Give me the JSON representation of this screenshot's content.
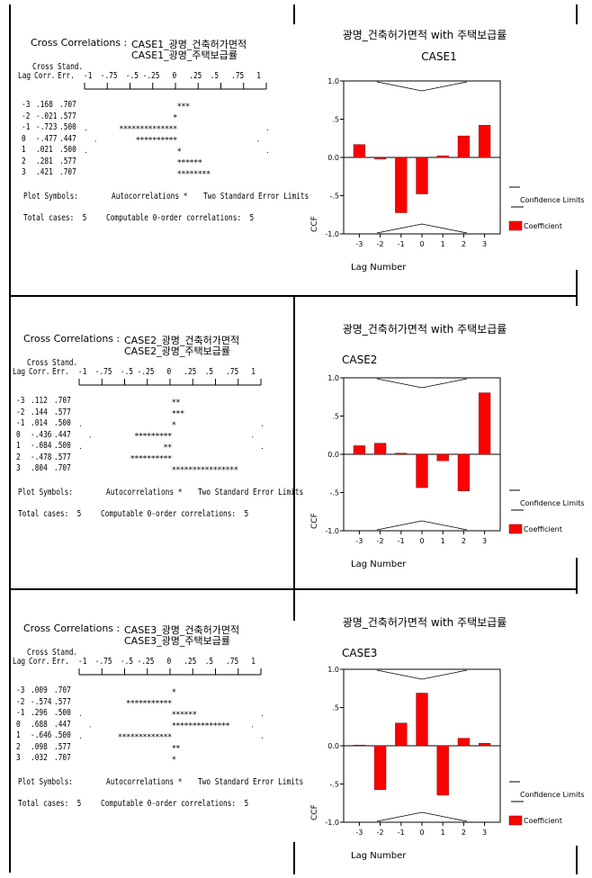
{
  "header_label": "Cross Correlations :",
  "table_headers": {
    "lag": "Lag",
    "corr_top": "Cross",
    "corr": "Corr.",
    "err_top": "Stand.",
    "err": "Err.",
    "scale": "-1  -.75  -.5 -.25   0   .25  .5   .75   1"
  },
  "footer": {
    "plot_symbols": "Plot Symbols:",
    "autocorr": "Autocorrelations *",
    "two_se": "Two Standard Error Limits",
    "total_cases": "Total cases:  5",
    "computable": "Computable 0-order correlations:  5"
  },
  "chart_labels": {
    "legend_conf": "Confidence Limits",
    "legend_coef": "Coefficient",
    "xlabel": "Lag Number",
    "ylabel": "CCF",
    "title": "광명_건축허가면적 with 주택보급률"
  },
  "colors": {
    "bar": "#ff0000",
    "bar_edge": "#800000"
  },
  "panels": [
    {
      "series1": "CASE1_광명_건축허가면적",
      "series2": "CASE1_광명_주택보급률",
      "rows": [
        {
          "lag": "-3",
          "corr": ".168",
          "err": ".707"
        },
        {
          "lag": "-2",
          "corr": "-.021",
          "err": ".577"
        },
        {
          "lag": "-1",
          "corr": "-.723",
          "err": ".500"
        },
        {
          "lag": "0",
          "corr": "-.477",
          "err": ".447"
        },
        {
          "lag": "1",
          "corr": ".021",
          "err": ".500"
        },
        {
          "lag": "2",
          "corr": ".281",
          "err": ".577"
        },
        {
          "lag": "3",
          "corr": ".421",
          "err": ".707"
        }
      ],
      "chart_data": {
        "type": "bar",
        "title": "광명_건축허가면적 with 주택보급률",
        "subtitle": "CASE1",
        "categories": [
          "-3",
          "-2",
          "-1",
          "0",
          "1",
          "2",
          "3"
        ],
        "values": [
          0.168,
          -0.021,
          -0.723,
          -0.477,
          0.021,
          0.281,
          0.421
        ],
        "xlabel": "Lag Number",
        "ylabel": "CCF",
        "ylim": [
          -1.0,
          1.0
        ],
        "yticks": [
          "1.0",
          ".5",
          "0.0",
          "-.5",
          "-1.0"
        ]
      }
    },
    {
      "series1": "CASE2_광명_건축허가면적",
      "series2": "CASE2_광명_주택보급률",
      "rows": [
        {
          "lag": "-3",
          "corr": ".112",
          "err": ".707"
        },
        {
          "lag": "-2",
          "corr": ".144",
          "err": ".577"
        },
        {
          "lag": "-1",
          "corr": ".014",
          "err": ".500"
        },
        {
          "lag": "0",
          "corr": "-.436",
          "err": ".447"
        },
        {
          "lag": "1",
          "corr": "-.084",
          "err": ".500"
        },
        {
          "lag": "2",
          "corr": "-.478",
          "err": ".577"
        },
        {
          "lag": "3",
          "corr": ".804",
          "err": ".707"
        }
      ],
      "chart_data": {
        "type": "bar",
        "title": "광명_건축허가면적 with 주택보급률",
        "subtitle": "CASE2",
        "categories": [
          "-3",
          "-2",
          "-1",
          "0",
          "1",
          "2",
          "3"
        ],
        "values": [
          0.112,
          0.144,
          0.014,
          -0.436,
          -0.084,
          -0.478,
          0.804
        ],
        "xlabel": "Lag Number",
        "ylabel": "CCF",
        "ylim": [
          -1.0,
          1.0
        ],
        "yticks": [
          "1.0",
          ".5",
          "0.0",
          "-.5",
          "-1.0"
        ]
      }
    },
    {
      "series1": "CASE3_광명_건축허가면적",
      "series2": "CASE3_광명_주택보급률",
      "rows": [
        {
          "lag": "-3",
          "corr": ".009",
          "err": ".707"
        },
        {
          "lag": "-2",
          "corr": "-.574",
          "err": ".577"
        },
        {
          "lag": "-1",
          "corr": ".296",
          "err": ".500"
        },
        {
          "lag": "0",
          "corr": ".688",
          "err": ".447"
        },
        {
          "lag": "1",
          "corr": "-.646",
          "err": ".500"
        },
        {
          "lag": "2",
          "corr": ".098",
          "err": ".577"
        },
        {
          "lag": "3",
          "corr": ".032",
          "err": ".707"
        }
      ],
      "chart_data": {
        "type": "bar",
        "title": "광명_건축허가면적 with 주택보급률",
        "subtitle": "CASE3",
        "categories": [
          "-3",
          "-2",
          "-1",
          "0",
          "1",
          "2",
          "3"
        ],
        "values": [
          0.009,
          -0.574,
          0.296,
          0.688,
          -0.646,
          0.098,
          0.032
        ],
        "xlabel": "Lag Number",
        "ylabel": "CCF",
        "ylim": [
          -1.0,
          1.0
        ],
        "yticks": [
          "1.0",
          ".5",
          "0.0",
          "-.5",
          "-1.0"
        ]
      }
    }
  ]
}
